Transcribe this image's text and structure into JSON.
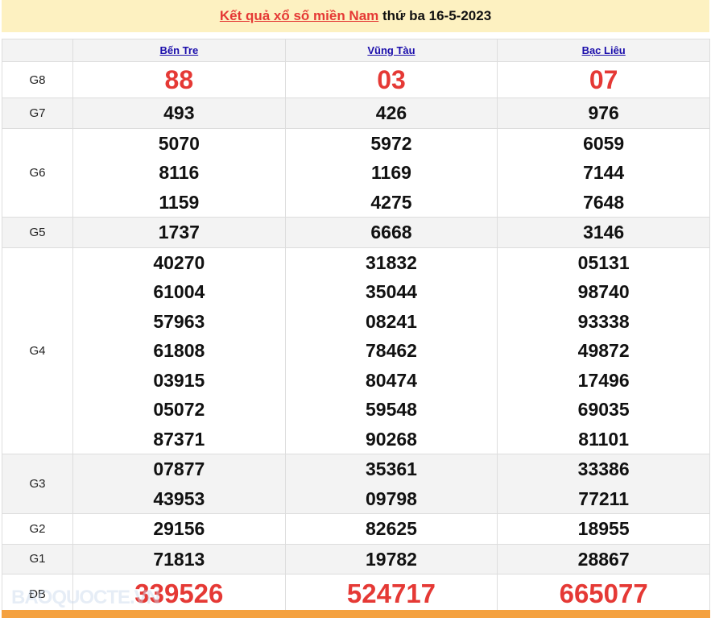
{
  "title": {
    "link": "Kết quả xổ số miền Nam",
    "rest": " thứ ba 16-5-2023"
  },
  "provinces": [
    "Bến Tre",
    "Vũng Tàu",
    "Bạc Liêu"
  ],
  "prizes": [
    {
      "label": "G8",
      "values": [
        [
          "88"
        ],
        [
          "03"
        ],
        [
          "07"
        ]
      ]
    },
    {
      "label": "G7",
      "values": [
        [
          "493"
        ],
        [
          "426"
        ],
        [
          "976"
        ]
      ]
    },
    {
      "label": "G6",
      "values": [
        [
          "5070",
          "8116",
          "1159"
        ],
        [
          "5972",
          "1169",
          "4275"
        ],
        [
          "6059",
          "7144",
          "7648"
        ]
      ]
    },
    {
      "label": "G5",
      "values": [
        [
          "1737"
        ],
        [
          "6668"
        ],
        [
          "3146"
        ]
      ]
    },
    {
      "label": "G4",
      "values": [
        [
          "40270",
          "61004",
          "57963",
          "61808",
          "03915",
          "05072",
          "87371"
        ],
        [
          "31832",
          "35044",
          "08241",
          "78462",
          "80474",
          "59548",
          "90268"
        ],
        [
          "05131",
          "98740",
          "93338",
          "49872",
          "17496",
          "69035",
          "81101"
        ]
      ]
    },
    {
      "label": "G3",
      "values": [
        [
          "07877",
          "43953"
        ],
        [
          "35361",
          "09798"
        ],
        [
          "33386",
          "77211"
        ]
      ]
    },
    {
      "label": "G2",
      "values": [
        [
          "29156"
        ],
        [
          "82625"
        ],
        [
          "18955"
        ]
      ]
    },
    {
      "label": "G1",
      "values": [
        [
          "71813"
        ],
        [
          "19782"
        ],
        [
          "28867"
        ]
      ]
    },
    {
      "label": "ĐB",
      "values": [
        [
          "339526"
        ],
        [
          "524717"
        ],
        [
          "665077"
        ]
      ]
    }
  ],
  "watermark": "BAOQUOCTE.VN",
  "colors": {
    "accent_red": "#e53935",
    "title_bg": "#fdf1c1",
    "footer_bg": "#f4a140",
    "link": "#1a0dab"
  }
}
